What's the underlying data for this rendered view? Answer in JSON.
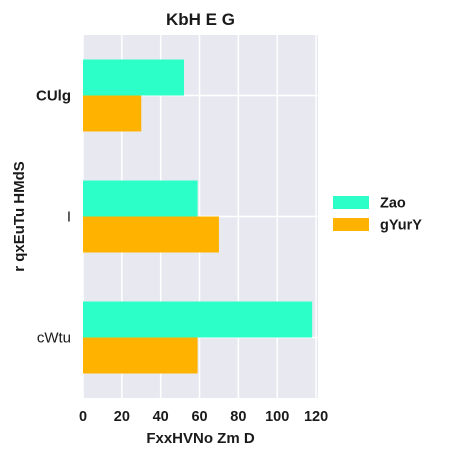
{
  "chart_data": {
    "type": "bar",
    "orientation": "horizontal",
    "title": "KbH E G",
    "xlabel": "FxxHVNo Zm  D",
    "ylabel": "r qxEuTu HMdS",
    "categories": [
      "CUlg",
      "I",
      "cWtu"
    ],
    "series": [
      {
        "name": "Zao",
        "values": [
          52,
          59,
          118
        ],
        "color": "#2dffc9"
      },
      {
        "name": "gYurY",
        "values": [
          30,
          70,
          59
        ],
        "color": "#ffb300"
      }
    ],
    "xlim": [
      0,
      121
    ],
    "xticks": [
      0,
      20,
      40,
      60,
      80,
      100,
      120
    ],
    "grid": true,
    "plot_background": "#e8e8f0",
    "legend_position": "right"
  }
}
